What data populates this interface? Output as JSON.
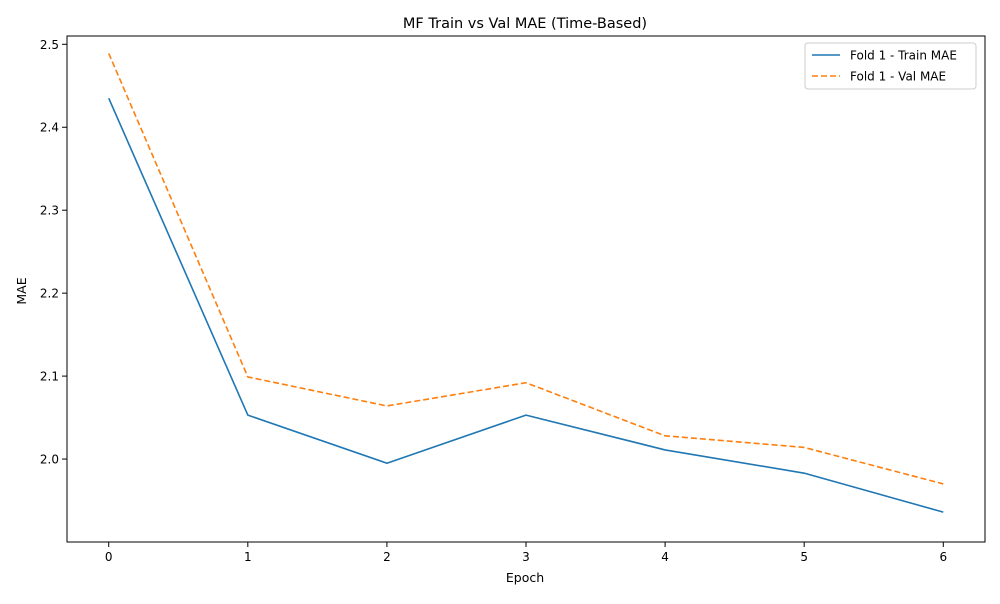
{
  "chart_data": {
    "type": "line",
    "title": "MF Train vs Val MAE (Time-Based)",
    "xlabel": "Epoch",
    "ylabel": "MAE",
    "x": [
      0,
      1,
      2,
      3,
      4,
      5,
      6
    ],
    "xlim": [
      -0.3,
      6.3
    ],
    "ylim": [
      1.9,
      2.51
    ],
    "xticks": [
      0,
      1,
      2,
      3,
      4,
      5,
      6
    ],
    "yticks": [
      2.0,
      2.1,
      2.2,
      2.3,
      2.4,
      2.5
    ],
    "ytick_labels": [
      "2.0",
      "2.1",
      "2.2",
      "2.3",
      "2.4",
      "2.5"
    ],
    "grid": false,
    "legend_position": "top-right",
    "series": [
      {
        "name": "Fold 1 - Train MAE",
        "values": [
          2.435,
          2.053,
          1.995,
          2.053,
          2.011,
          1.983,
          1.936
        ],
        "color": "#1f77b4",
        "style": "solid"
      },
      {
        "name": "Fold 1 - Val MAE",
        "values": [
          2.489,
          2.099,
          2.064,
          2.092,
          2.028,
          2.014,
          1.97
        ],
        "color": "#ff7f0e",
        "style": "dashed"
      }
    ]
  }
}
